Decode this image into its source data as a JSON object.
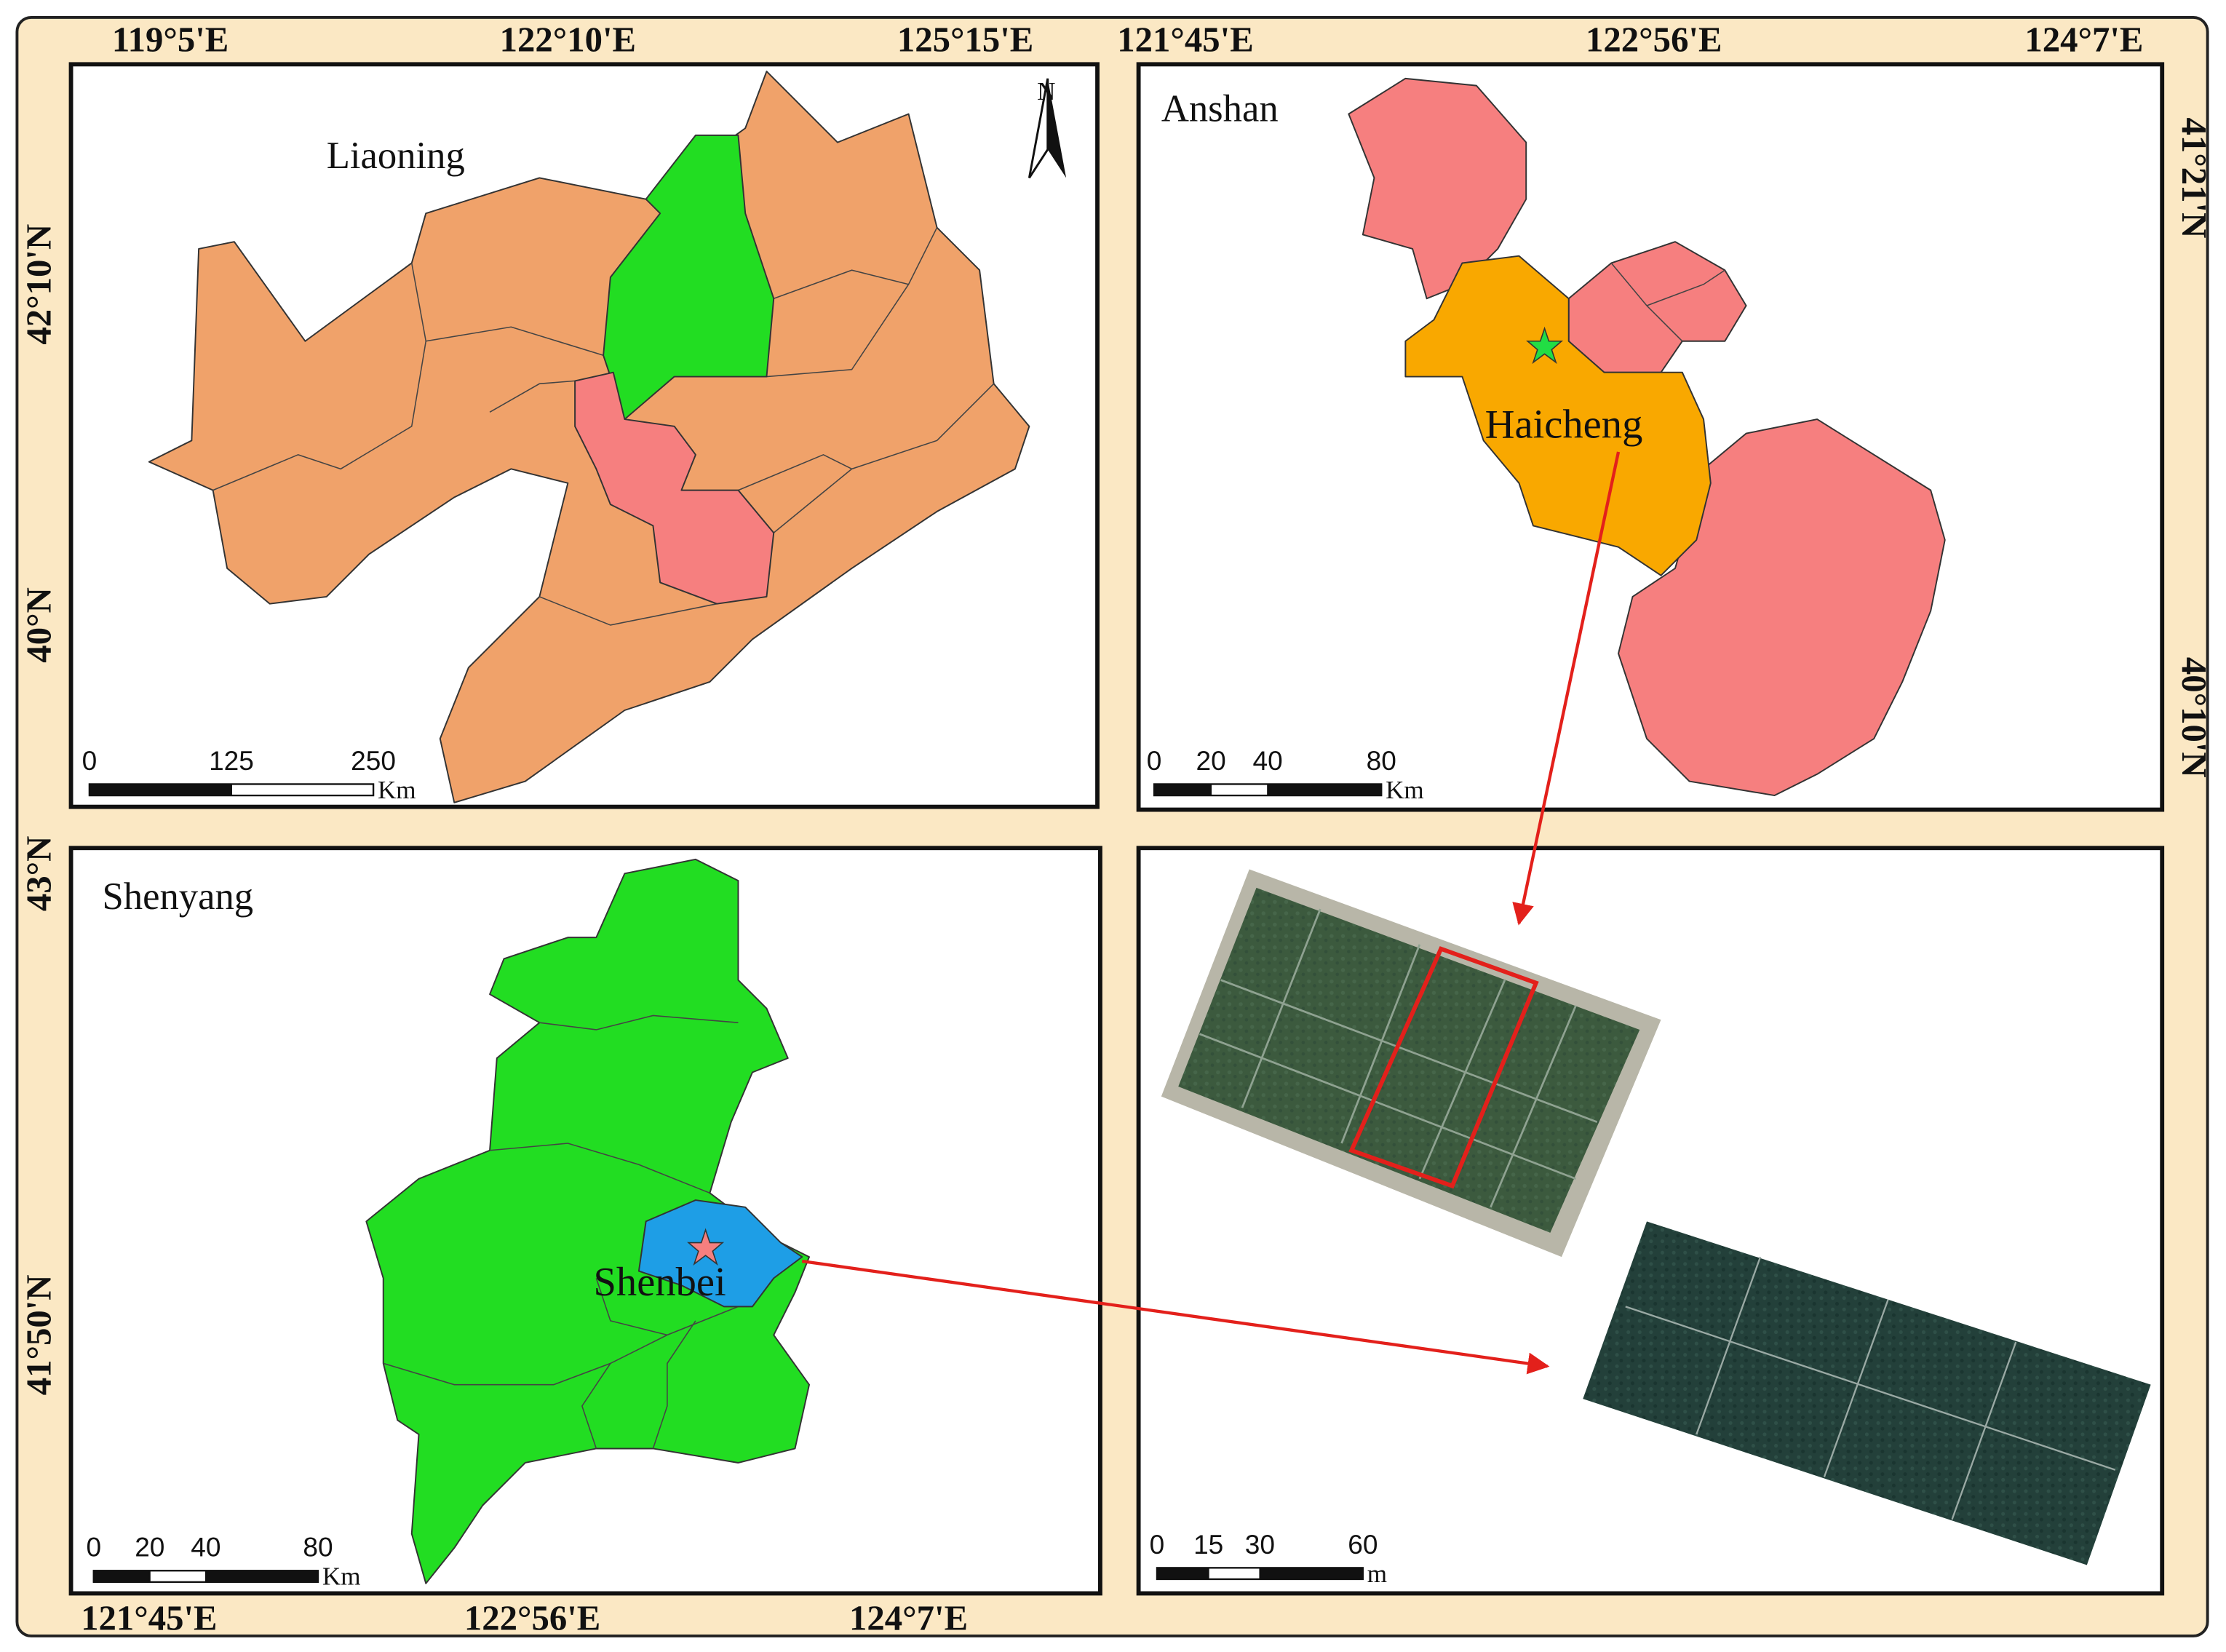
{
  "coordinate_labels": {
    "top": [
      "119°5'E",
      "122°10'E",
      "125°15'E",
      "121°45'E",
      "122°56'E",
      "124°7'E"
    ],
    "left": [
      "42°10'N",
      "40°N",
      "43°N",
      "41°50'N"
    ],
    "right": [
      "41°21'N",
      "40°10'N"
    ],
    "bottom": [
      "121°45'E",
      "122°56'E",
      "124°7'E"
    ]
  },
  "panels": [
    {
      "title": "Liaoning",
      "north_arrow": "N",
      "scale_bar": {
        "ticks": [
          0,
          125,
          250
        ],
        "unit": "Km"
      }
    },
    {
      "title": "Anshan",
      "highlight": "Haicheng",
      "scale_bar": {
        "ticks": [
          0,
          20,
          40,
          80
        ],
        "unit": "Km"
      }
    },
    {
      "title": "Shenyang",
      "highlight": "Shenbei",
      "scale_bar": {
        "ticks": [
          0,
          20,
          40,
          80
        ],
        "unit": "Km"
      }
    },
    {
      "scale_bar": {
        "ticks": [
          0,
          15,
          30,
          60
        ],
        "unit": "m"
      }
    }
  ]
}
